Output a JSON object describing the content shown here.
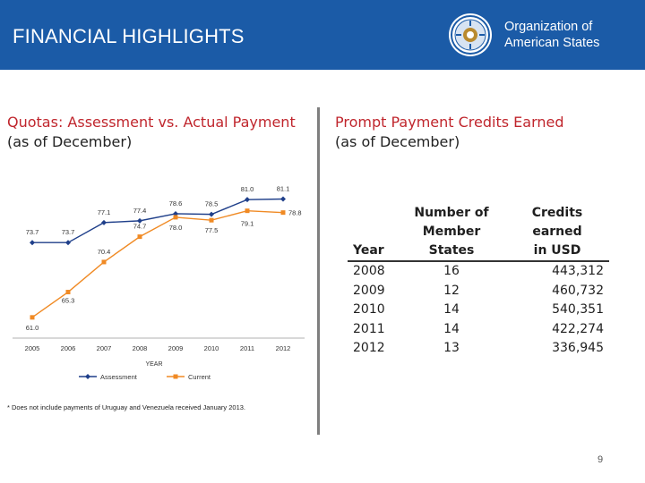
{
  "header": {
    "title": "FINANCIAL HIGHLIGHTS",
    "org_name_line1": "Organization of",
    "org_name_line2": "American States"
  },
  "left_panel": {
    "title_line1": "Quotas: Assessment vs. Actual Payment",
    "title_line2": "(as of December)",
    "footnote": "* Does not include payments of Uruguay and Venezuela received January 2013."
  },
  "right_panel": {
    "title_line1": "Prompt Payment Credits Earned",
    "title_line2": "(as of December)"
  },
  "chart_data": {
    "type": "line",
    "title": "Quotas: Assessment vs. Actual Payment (as of December)",
    "xlabel": "YEAR",
    "ylabel": "",
    "categories": [
      "2005",
      "2006",
      "2007",
      "2008",
      "2009",
      "2010",
      "2011",
      "2012"
    ],
    "ylim": [
      59,
      83
    ],
    "grid": false,
    "legend": "bottom",
    "series": [
      {
        "name": "Assessment",
        "color": "#1f3f8a",
        "marker": "diamond",
        "values": [
          73.7,
          73.7,
          77.1,
          77.4,
          78.6,
          78.5,
          81.0,
          81.1
        ]
      },
      {
        "name": "Current",
        "color": "#f08a24",
        "marker": "square",
        "values": [
          61.0,
          65.3,
          70.4,
          74.7,
          78.0,
          77.5,
          79.1,
          78.8
        ]
      }
    ],
    "labels": {
      "assessment": [
        "73.7",
        "73.7",
        "77.1",
        "77.4",
        "78.6",
        "78.5",
        "81.0",
        "81.1"
      ],
      "current": [
        "61.0",
        "65.3",
        "70.4",
        "74.7",
        "78.0",
        "77.5",
        "79.1",
        "78.8"
      ]
    },
    "annotation": "*"
  },
  "credits_table": {
    "headers": {
      "year": "Year",
      "members_l1": "Number of",
      "members_l2": "Member States",
      "credits_l1": "Credits earned",
      "credits_l2": "in USD"
    },
    "rows": [
      {
        "year": "2008",
        "members": "16",
        "credits": "443,312"
      },
      {
        "year": "2009",
        "members": "12",
        "credits": "460,732"
      },
      {
        "year": "2010",
        "members": "14",
        "credits": "540,351"
      },
      {
        "year": "2011",
        "members": "14",
        "credits": "422,274"
      },
      {
        "year": "2012",
        "members": "13",
        "credits": "336,945"
      }
    ]
  },
  "page_number": "9"
}
